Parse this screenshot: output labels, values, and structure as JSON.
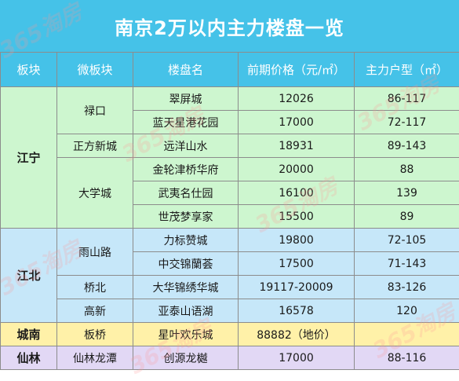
{
  "title": "南京2万以内主力楼盘一览",
  "headers": [
    "板块",
    "微板块",
    "楼盘名",
    "前期价格（元/㎡）",
    "主力户型（㎡）"
  ],
  "watermark": "365淘房",
  "colors": {
    "header": "#45c2e8",
    "jiangning": "#cdf6cf",
    "jiangbei": "#c6e7f9",
    "chengnan": "#fff1a8",
    "xianlin": "#e2d8f5"
  },
  "groups": [
    {
      "district": "江宁",
      "subareas": [
        {
          "name": "禄口",
          "rows": [
            {
              "name": "翠屏城",
              "price": "12026",
              "size": "86-117"
            },
            {
              "name": "蓝天星港花园",
              "price": "17000",
              "size": "72-117"
            }
          ]
        },
        {
          "name": "正方新城",
          "rows": [
            {
              "name": "远洋山水",
              "price": "18931",
              "size": "89-143"
            }
          ]
        },
        {
          "name": "大学城",
          "rows": [
            {
              "name": "金轮津桥华府",
              "price": "20000",
              "size": "88"
            },
            {
              "name": "武夷名仕园",
              "price": "16100",
              "size": "139"
            },
            {
              "name": "世茂梦享家",
              "price": "15500",
              "size": "89"
            }
          ]
        }
      ]
    },
    {
      "district": "江北",
      "subareas": [
        {
          "name": "雨山路",
          "rows": [
            {
              "name": "力标赞城",
              "price": "19800",
              "size": "72-105"
            },
            {
              "name": "中交锦蘭荟",
              "price": "17500",
              "size": "71-143"
            }
          ]
        },
        {
          "name": "桥北",
          "rows": [
            {
              "name": "大华锦绣华城",
              "price": "19117-20009",
              "size": "83-126"
            }
          ]
        },
        {
          "name": "高新",
          "rows": [
            {
              "name": "亚泰山语湖",
              "price": "16578",
              "size": "120"
            }
          ]
        }
      ]
    },
    {
      "district": "城南",
      "subareas": [
        {
          "name": "板桥",
          "rows": [
            {
              "name": "星叶欢乐城",
              "price": "88882（地价）",
              "size": ""
            }
          ]
        }
      ]
    },
    {
      "district": "仙林",
      "subareas": [
        {
          "name": "仙林龙潭",
          "rows": [
            {
              "name": "创源龙樾",
              "price": "17000",
              "size": "88-116"
            }
          ]
        }
      ]
    }
  ]
}
